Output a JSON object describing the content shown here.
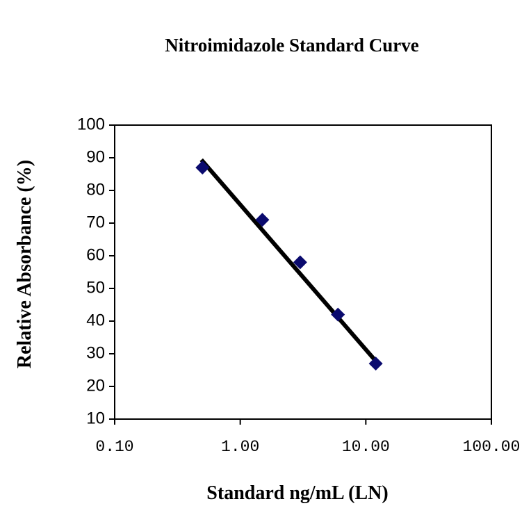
{
  "chart_data": {
    "type": "scatter",
    "title": "Nitroimidazole Standard Curve",
    "x_label": "Standard ng/mL (LN)",
    "y_label": "Relative Absorbance (%)",
    "x": [
      0.5,
      1.5,
      3,
      6,
      12
    ],
    "values": [
      87,
      71,
      58,
      42,
      27
    ],
    "color": "#0a0a6e",
    "trendline": {
      "x": [
        0.49,
        11.8
      ],
      "values": [
        89.4,
        28.1
      ],
      "color": "#000000"
    },
    "xscale": "log",
    "xlim": [
      0.1,
      100
    ],
    "xticks": [
      {
        "value": 0.1,
        "label": "0.10"
      },
      {
        "value": 1,
        "label": "1.00"
      },
      {
        "value": 10,
        "label": "10.00"
      },
      {
        "value": 100,
        "label": "100.00"
      }
    ],
    "ylim": [
      10,
      100
    ],
    "yticks": [
      10,
      20,
      30,
      40,
      50,
      60,
      70,
      80,
      90,
      100
    ],
    "grid": false
  }
}
